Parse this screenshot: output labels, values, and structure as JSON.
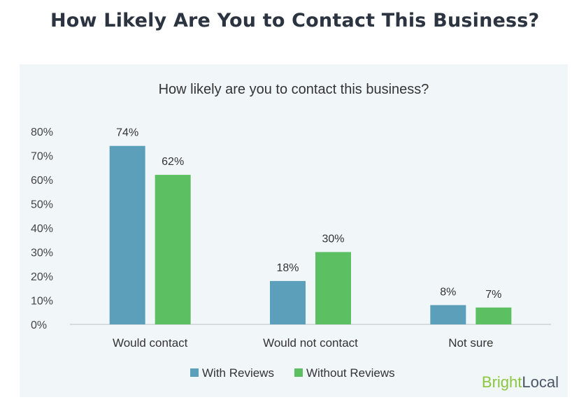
{
  "header": {
    "title": "How Likely Are You to Contact This Business?"
  },
  "brand": {
    "part1": "Bright",
    "part2": "Local"
  },
  "colors": {
    "with_reviews": "#5b9fbb",
    "without_reviews": "#5cc062",
    "panel": "#f1f7f9",
    "axis": "#bfbfbf"
  },
  "chart_data": {
    "type": "bar",
    "title": "How likely are you to contact this business?",
    "categories": [
      "Would contact",
      "Would not contact",
      "Not sure"
    ],
    "series": [
      {
        "name": "With Reviews",
        "values": [
          74,
          18,
          8
        ]
      },
      {
        "name": "Without Reviews",
        "values": [
          62,
          30,
          7
        ]
      }
    ],
    "data_labels": [
      [
        "74%",
        "18%",
        "8%"
      ],
      [
        "62%",
        "30%",
        "7%"
      ]
    ],
    "y_ticks": [
      0,
      10,
      20,
      30,
      40,
      50,
      60,
      70,
      80
    ],
    "y_tick_labels": [
      "0%",
      "10%",
      "20%",
      "30%",
      "40%",
      "50%",
      "60%",
      "70%",
      "80%"
    ],
    "ylim": [
      0,
      80
    ],
    "grid": false,
    "legend_position": "bottom"
  }
}
